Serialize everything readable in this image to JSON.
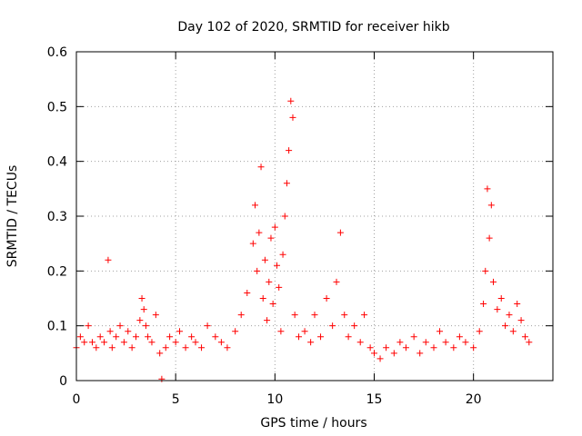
{
  "chart_data": {
    "type": "scatter",
    "title": "Day 102 of 2020, SRMTID for receiver hikb",
    "xlabel": "GPS time / hours",
    "ylabel": "SRMTID / TECUs",
    "xlim": [
      0,
      24
    ],
    "ylim": [
      0,
      0.6
    ],
    "xticks": [
      0,
      5,
      10,
      15,
      20
    ],
    "xtick_labels": [
      "0",
      "5",
      "10",
      "15",
      "20"
    ],
    "yticks": [
      0,
      0.1,
      0.2,
      0.3,
      0.4,
      0.5,
      0.6
    ],
    "ytick_labels": [
      "0",
      "0.1",
      "0.2",
      "0.3",
      "0.4",
      "0.5",
      "0.6"
    ],
    "grid": true,
    "marker": "+",
    "series": [
      {
        "name": "SRMTID",
        "color": "#ff0000",
        "x": [
          0.0,
          0.2,
          0.4,
          0.6,
          0.8,
          1.0,
          1.2,
          1.4,
          1.6,
          1.7,
          1.8,
          2.0,
          2.2,
          2.4,
          2.6,
          2.8,
          3.0,
          3.2,
          3.3,
          3.4,
          3.5,
          3.6,
          3.8,
          4.0,
          4.2,
          4.3,
          4.5,
          4.7,
          5.0,
          5.2,
          5.5,
          5.8,
          6.0,
          6.3,
          6.6,
          7.0,
          7.3,
          7.6,
          8.0,
          8.3,
          8.6,
          8.9,
          9.0,
          9.1,
          9.2,
          9.3,
          9.4,
          9.5,
          9.6,
          9.7,
          9.8,
          9.9,
          10.0,
          10.1,
          10.2,
          10.3,
          10.4,
          10.5,
          10.6,
          10.7,
          10.8,
          10.9,
          11.0,
          11.2,
          11.5,
          11.8,
          12.0,
          12.3,
          12.6,
          12.9,
          13.1,
          13.3,
          13.5,
          13.7,
          14.0,
          14.3,
          14.5,
          14.8,
          15.0,
          15.3,
          15.6,
          16.0,
          16.3,
          16.6,
          17.0,
          17.3,
          17.6,
          18.0,
          18.3,
          18.6,
          19.0,
          19.3,
          19.6,
          20.0,
          20.3,
          20.5,
          20.6,
          20.7,
          20.8,
          20.9,
          21.0,
          21.2,
          21.4,
          21.6,
          21.8,
          22.0,
          22.2,
          22.4,
          22.6,
          22.8
        ],
        "y": [
          0.06,
          0.08,
          0.07,
          0.1,
          0.07,
          0.06,
          0.08,
          0.07,
          0.22,
          0.09,
          0.06,
          0.08,
          0.1,
          0.07,
          0.09,
          0.06,
          0.08,
          0.11,
          0.15,
          0.13,
          0.1,
          0.08,
          0.07,
          0.12,
          0.05,
          0.003,
          0.06,
          0.08,
          0.07,
          0.09,
          0.06,
          0.08,
          0.07,
          0.06,
          0.1,
          0.08,
          0.07,
          0.06,
          0.09,
          0.12,
          0.16,
          0.25,
          0.32,
          0.2,
          0.27,
          0.39,
          0.15,
          0.22,
          0.11,
          0.18,
          0.26,
          0.14,
          0.28,
          0.21,
          0.17,
          0.09,
          0.23,
          0.3,
          0.36,
          0.42,
          0.51,
          0.48,
          0.12,
          0.08,
          0.09,
          0.07,
          0.12,
          0.08,
          0.15,
          0.1,
          0.18,
          0.27,
          0.12,
          0.08,
          0.1,
          0.07,
          0.12,
          0.06,
          0.05,
          0.04,
          0.06,
          0.05,
          0.07,
          0.06,
          0.08,
          0.05,
          0.07,
          0.06,
          0.09,
          0.07,
          0.06,
          0.08,
          0.07,
          0.06,
          0.09,
          0.14,
          0.2,
          0.35,
          0.26,
          0.32,
          0.18,
          0.13,
          0.15,
          0.1,
          0.12,
          0.09,
          0.14,
          0.11,
          0.08,
          0.07
        ]
      }
    ]
  }
}
